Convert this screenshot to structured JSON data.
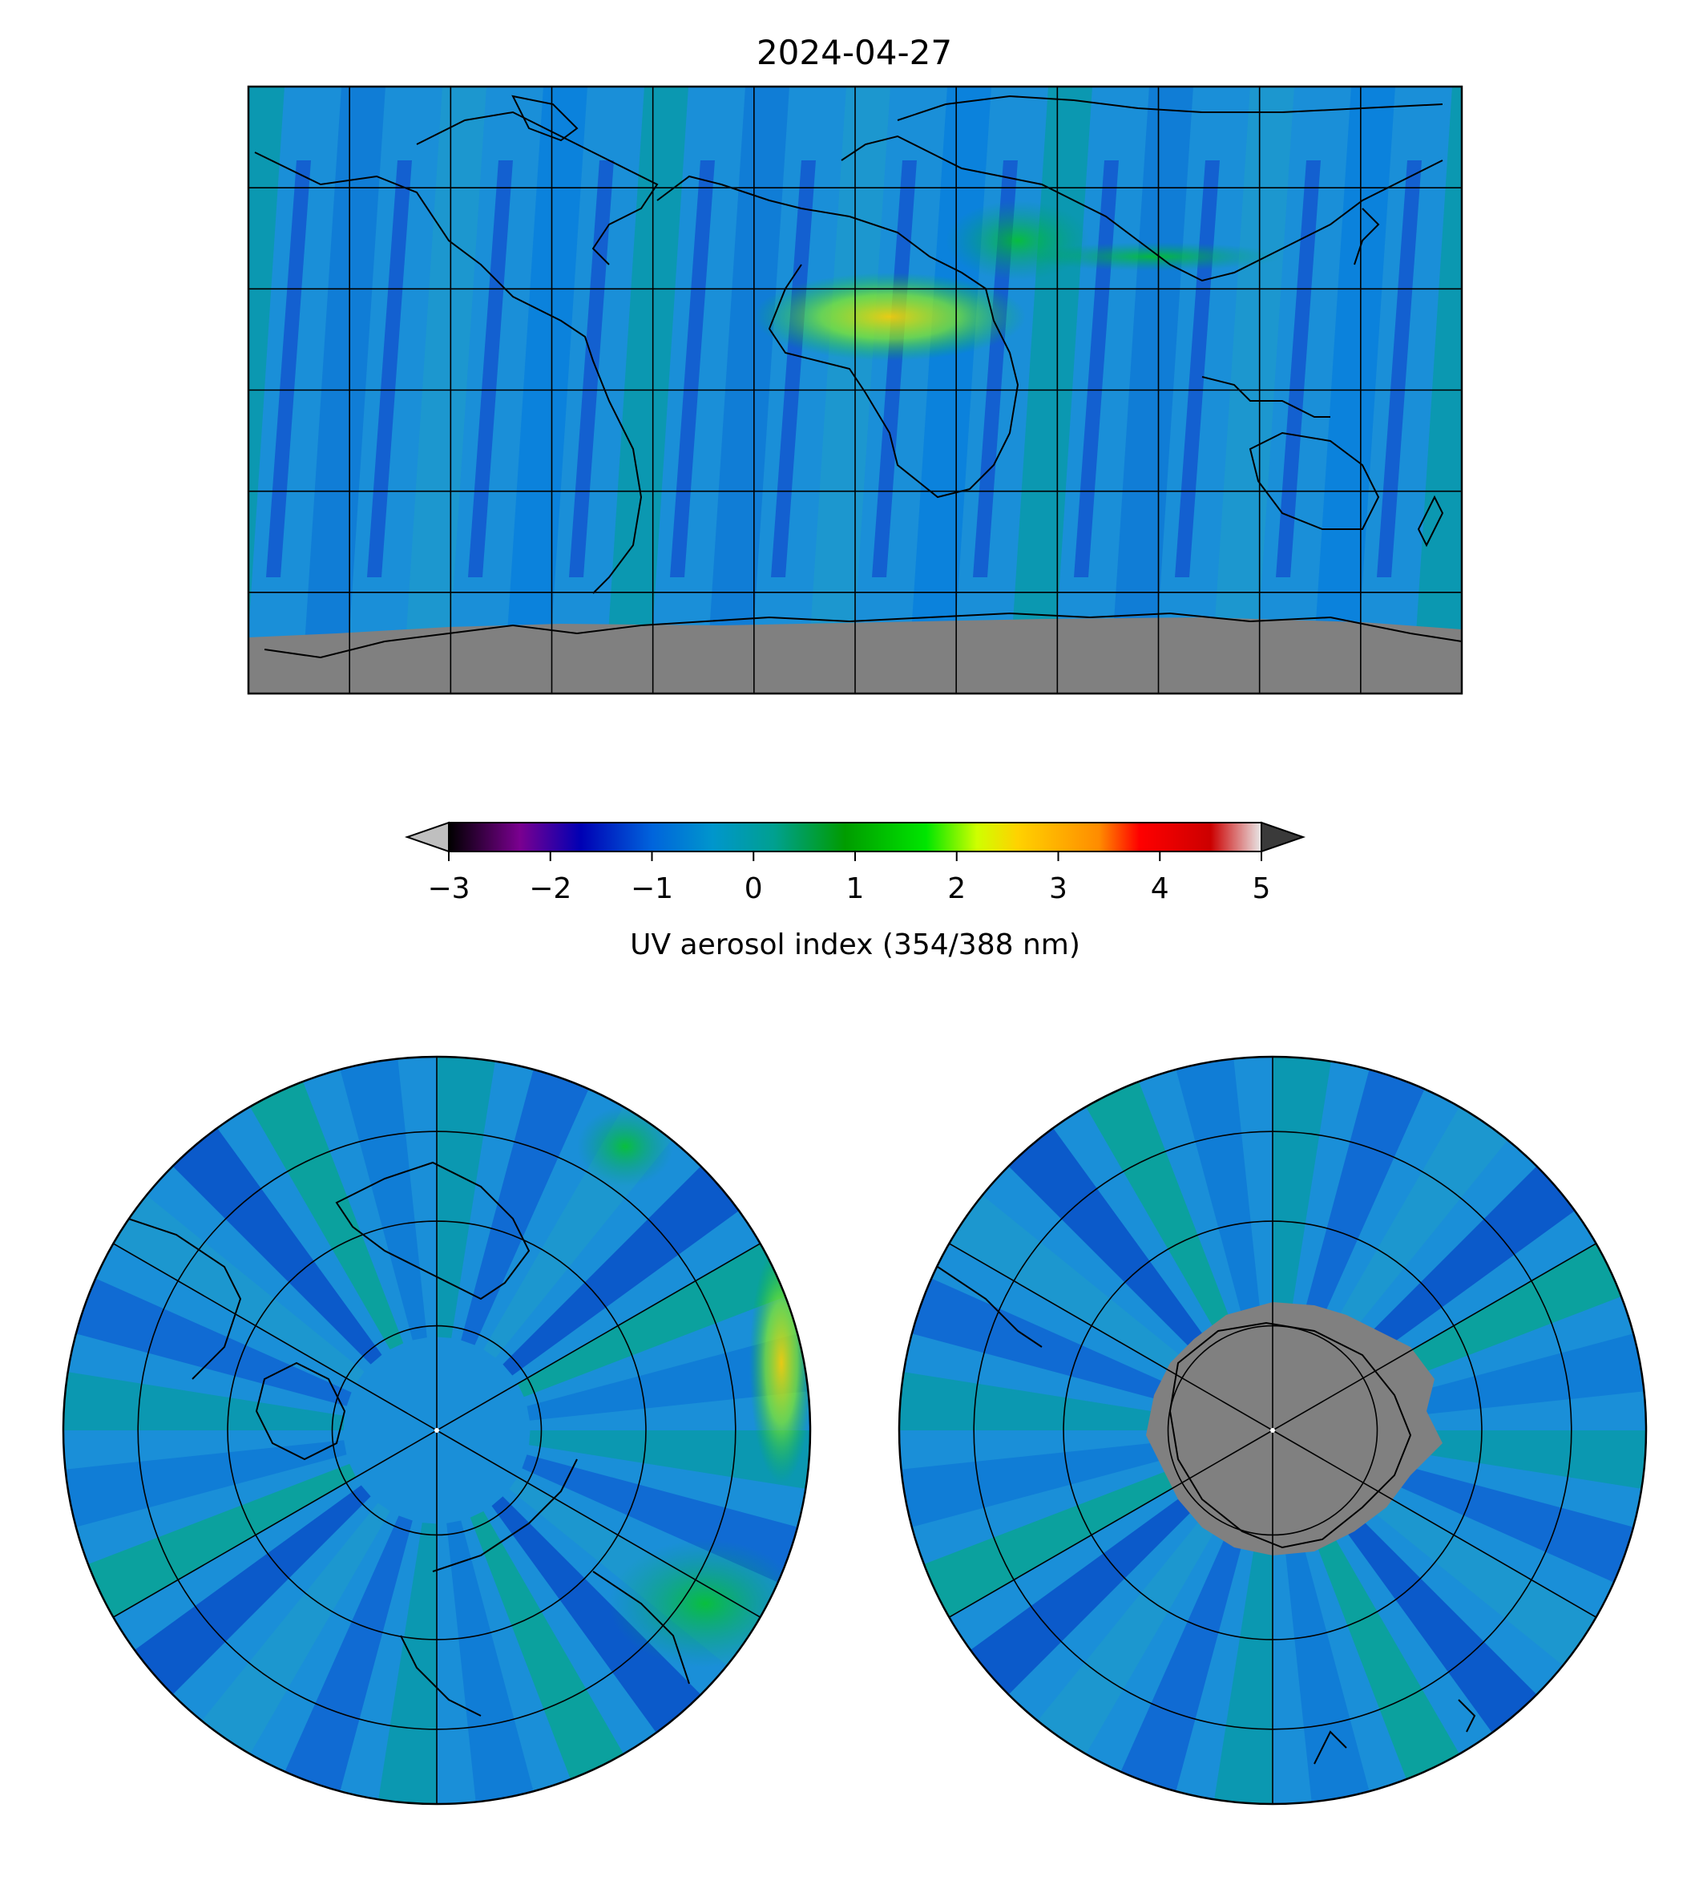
{
  "title": "2024-04-27",
  "colorbar": {
    "label": "UV aerosol index (354/388 nm)",
    "ticks": [
      "−3",
      "−2",
      "−1",
      "0",
      "1",
      "2",
      "3",
      "4",
      "5"
    ],
    "range": [
      -3,
      5
    ],
    "under_color": "#bfbfbf",
    "over_color": "#3a3a3a",
    "stops": [
      {
        "v": -3.0,
        "c": "#000000"
      },
      {
        "v": -2.3,
        "c": "#7a0090"
      },
      {
        "v": -1.7,
        "c": "#0000b4"
      },
      {
        "v": -1.0,
        "c": "#0064dc"
      },
      {
        "v": -0.4,
        "c": "#0096cc"
      },
      {
        "v": 0.2,
        "c": "#00a090"
      },
      {
        "v": 0.9,
        "c": "#009c00"
      },
      {
        "v": 1.7,
        "c": "#00e600"
      },
      {
        "v": 2.2,
        "c": "#cfff00"
      },
      {
        "v": 2.6,
        "c": "#ffd200"
      },
      {
        "v": 3.4,
        "c": "#ff8c00"
      },
      {
        "v": 3.8,
        "c": "#ff0000"
      },
      {
        "v": 4.5,
        "c": "#cc0000"
      },
      {
        "v": 5.0,
        "c": "#e8e8e8"
      }
    ]
  },
  "maps": {
    "global": {
      "projection": "plate-carree",
      "background_color": "#1a8fd8",
      "nodata_color": "#808080"
    },
    "north_polar": {
      "projection": "north-polar-stereographic",
      "background_color": "#1a8fd8"
    },
    "south_polar": {
      "projection": "south-polar-stereographic",
      "background_color": "#1a8fd8",
      "nodata_color": "#808080"
    }
  }
}
